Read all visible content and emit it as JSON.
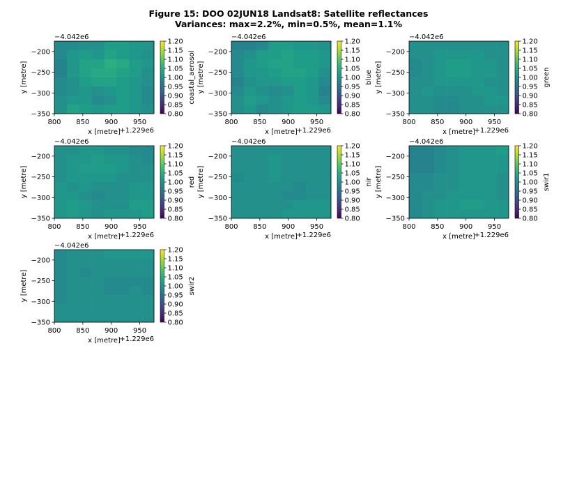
{
  "figure": {
    "title_line1": "Figure 15: DOO 02JUN18  Landsat8: Satellite reflectances",
    "title_line2": "Variances: max=2.2%, min=0.5%, mean=1.1%"
  },
  "colormap": {
    "name": "viridis",
    "stops": [
      "#440154",
      "#482878",
      "#3e4989",
      "#31688e",
      "#26828e",
      "#1f9e89",
      "#35b779",
      "#6ece58",
      "#b5de2b",
      "#fde725"
    ]
  },
  "chart_data": [
    {
      "type": "heatmap",
      "band": "coastal_aerosol",
      "xlabel": "x [metre]",
      "ylabel": "y [metre]",
      "x_offset_label": "+1.229e6",
      "y_offset_label": "−4.042e6",
      "xlim": [
        800,
        975
      ],
      "ylim": [
        -350,
        -175
      ],
      "x_ticks": [
        "800",
        "850",
        "900",
        "950"
      ],
      "y_ticks": [
        "−200",
        "−250",
        "−300",
        "−350"
      ],
      "colorbar": {
        "label": "coastal_aerosol",
        "range": [
          0.8,
          1.2
        ],
        "ticks": [
          "1.20",
          "1.15",
          "1.10",
          "1.05",
          "1.00",
          "0.95",
          "0.90",
          "0.85",
          "0.80"
        ]
      },
      "grid": [
        [
          0.99,
          0.99,
          1.0,
          1.0,
          1.02,
          1.02,
          1.01,
          1.01
        ],
        [
          0.99,
          1.01,
          1.02,
          1.01,
          1.03,
          1.02,
          1.01,
          1.0
        ],
        [
          0.98,
          1.01,
          1.03,
          1.03,
          1.05,
          1.04,
          1.02,
          1.01
        ],
        [
          0.98,
          1.01,
          1.03,
          1.04,
          1.04,
          1.03,
          1.02,
          1.0
        ],
        [
          0.99,
          1.0,
          1.02,
          1.03,
          1.03,
          1.02,
          1.01,
          1.0
        ],
        [
          0.99,
          1.0,
          1.01,
          1.0,
          1.01,
          1.02,
          1.01,
          0.99
        ],
        [
          1.0,
          1.01,
          1.01,
          0.99,
          1.0,
          1.02,
          1.01,
          0.99
        ],
        [
          1.0,
          1.03,
          1.02,
          1.01,
          1.02,
          1.02,
          1.01,
          1.0
        ]
      ]
    },
    {
      "type": "heatmap",
      "band": "blue",
      "xlabel": "x [metre]",
      "ylabel": "y [metre]",
      "x_offset_label": "+1.229e6",
      "y_offset_label": "−4.042e6",
      "xlim": [
        800,
        975
      ],
      "ylim": [
        -350,
        -175
      ],
      "x_ticks": [
        "800",
        "850",
        "900",
        "950"
      ],
      "y_ticks": [
        "−200",
        "−250",
        "−300",
        "−350"
      ],
      "colorbar": {
        "label": "blue",
        "range": [
          0.8,
          1.2
        ],
        "ticks": [
          "1.20",
          "1.15",
          "1.10",
          "1.05",
          "1.00",
          "0.95",
          "0.90",
          "0.85",
          "0.80"
        ]
      },
      "grid": [
        [
          0.98,
          0.98,
          0.99,
          1.02,
          1.02,
          1.01,
          1.01,
          1.0
        ],
        [
          0.99,
          1.0,
          1.02,
          1.02,
          1.03,
          1.02,
          1.02,
          1.01
        ],
        [
          0.99,
          1.01,
          1.02,
          1.03,
          1.03,
          1.02,
          1.02,
          1.01
        ],
        [
          0.99,
          1.01,
          1.01,
          1.02,
          1.03,
          1.03,
          1.02,
          1.0
        ],
        [
          0.98,
          1.0,
          1.01,
          1.01,
          1.02,
          1.02,
          1.01,
          0.99
        ],
        [
          0.99,
          1.01,
          1.0,
          0.99,
          1.0,
          1.02,
          1.01,
          0.98
        ],
        [
          1.0,
          1.02,
          1.01,
          1.0,
          1.01,
          1.02,
          1.01,
          0.99
        ],
        [
          1.0,
          1.01,
          0.99,
          1.0,
          1.01,
          1.02,
          1.02,
          1.01
        ]
      ]
    },
    {
      "type": "heatmap",
      "band": "green",
      "xlabel": "x [metre]",
      "ylabel": "y [metre]",
      "x_offset_label": "+1.229e6",
      "y_offset_label": "−4.042e6",
      "xlim": [
        800,
        975
      ],
      "ylim": [
        -350,
        -175
      ],
      "x_ticks": [
        "800",
        "850",
        "900",
        "950"
      ],
      "y_ticks": [
        "−200",
        "−250",
        "−300",
        "−350"
      ],
      "colorbar": {
        "label": "green",
        "range": [
          0.8,
          1.2
        ],
        "ticks": [
          "1.20",
          "1.15",
          "1.10",
          "1.05",
          "1.00",
          "0.95",
          "0.90",
          "0.85",
          "0.80"
        ]
      },
      "grid": [
        [
          1.0,
          1.0,
          1.0,
          1.0,
          1.0,
          1.0,
          1.0,
          1.0
        ],
        [
          1.0,
          1.0,
          1.01,
          1.01,
          1.01,
          1.01,
          1.0,
          1.0
        ],
        [
          0.99,
          1.0,
          1.01,
          1.02,
          1.02,
          1.01,
          1.01,
          1.0
        ],
        [
          0.99,
          1.0,
          1.01,
          1.02,
          1.02,
          1.01,
          1.01,
          1.0
        ],
        [
          1.0,
          1.0,
          1.01,
          1.01,
          1.01,
          1.01,
          1.0,
          1.0
        ],
        [
          1.0,
          1.01,
          1.0,
          1.0,
          1.0,
          1.01,
          1.01,
          1.0
        ],
        [
          1.0,
          1.0,
          0.99,
          0.99,
          1.0,
          1.0,
          1.01,
          1.01
        ],
        [
          1.0,
          1.0,
          0.99,
          0.99,
          1.0,
          1.0,
          1.0,
          1.0
        ]
      ]
    },
    {
      "type": "heatmap",
      "band": "red",
      "xlabel": "x [metre]",
      "ylabel": "y [metre]",
      "x_offset_label": "+1.229e6",
      "y_offset_label": "−4.042e6",
      "xlim": [
        800,
        975
      ],
      "ylim": [
        -350,
        -175
      ],
      "x_ticks": [
        "800",
        "850",
        "900",
        "950"
      ],
      "y_ticks": [
        "−200",
        "−250",
        "−300",
        "−350"
      ],
      "colorbar": {
        "label": "red",
        "range": [
          0.8,
          1.2
        ],
        "ticks": [
          "1.20",
          "1.15",
          "1.10",
          "1.05",
          "1.00",
          "0.95",
          "0.90",
          "0.85",
          "0.80"
        ]
      },
      "grid": [
        [
          1.0,
          1.0,
          1.01,
          1.01,
          1.0,
          1.0,
          0.99,
          0.99
        ],
        [
          1.0,
          1.01,
          1.01,
          1.02,
          1.01,
          1.01,
          1.0,
          0.99
        ],
        [
          1.0,
          1.01,
          1.02,
          1.02,
          1.02,
          1.01,
          1.0,
          1.0
        ],
        [
          1.0,
          1.01,
          1.01,
          1.01,
          1.01,
          1.0,
          1.0,
          1.0
        ],
        [
          1.01,
          1.0,
          1.01,
          1.0,
          1.0,
          1.0,
          1.01,
          1.01
        ],
        [
          1.01,
          1.01,
          1.0,
          0.99,
          1.0,
          1.0,
          1.01,
          1.01
        ],
        [
          1.01,
          1.02,
          1.01,
          1.0,
          1.0,
          1.0,
          1.02,
          1.02
        ],
        [
          1.01,
          1.02,
          1.01,
          1.0,
          1.01,
          1.01,
          1.01,
          1.02
        ]
      ]
    },
    {
      "type": "heatmap",
      "band": "nir",
      "xlabel": "x [metre]",
      "ylabel": "y [metre]",
      "x_offset_label": "+1.229e6",
      "y_offset_label": "−4.042e6",
      "xlim": [
        800,
        975
      ],
      "ylim": [
        -350,
        -175
      ],
      "x_ticks": [
        "800",
        "850",
        "900",
        "950"
      ],
      "y_ticks": [
        "−200",
        "−250",
        "−300",
        "−350"
      ],
      "colorbar": {
        "label": "nir",
        "range": [
          0.8,
          1.2
        ],
        "ticks": [
          "1.20",
          "1.15",
          "1.10",
          "1.05",
          "1.00",
          "0.95",
          "0.90",
          "0.85",
          "0.80"
        ]
      },
      "grid": [
        [
          1.0,
          1.0,
          1.0,
          1.0,
          1.0,
          1.0,
          1.0,
          1.0
        ],
        [
          1.0,
          1.0,
          1.0,
          1.01,
          1.0,
          1.0,
          1.0,
          1.0
        ],
        [
          1.0,
          1.0,
          1.0,
          1.01,
          1.0,
          1.0,
          1.0,
          1.0
        ],
        [
          0.99,
          1.0,
          1.0,
          1.01,
          1.0,
          1.0,
          1.0,
          1.0
        ],
        [
          1.0,
          1.0,
          1.0,
          1.0,
          1.0,
          0.99,
          1.0,
          1.0
        ],
        [
          1.0,
          1.0,
          1.0,
          1.0,
          0.99,
          0.99,
          1.0,
          1.0
        ],
        [
          1.0,
          1.0,
          1.0,
          1.0,
          1.0,
          1.01,
          1.01,
          1.01
        ],
        [
          1.0,
          1.0,
          1.0,
          1.0,
          1.01,
          1.01,
          1.01,
          1.01
        ]
      ]
    },
    {
      "type": "heatmap",
      "band": "swir1",
      "xlabel": "x [metre]",
      "ylabel": "y [metre]",
      "x_offset_label": "+1.229e6",
      "y_offset_label": "−4.042e6",
      "xlim": [
        800,
        975
      ],
      "ylim": [
        -350,
        -175
      ],
      "x_ticks": [
        "800",
        "850",
        "900",
        "950"
      ],
      "y_ticks": [
        "−200",
        "−250",
        "−300",
        "−350"
      ],
      "colorbar": {
        "label": "swir1",
        "range": [
          0.8,
          1.2
        ],
        "ticks": [
          "1.20",
          "1.15",
          "1.10",
          "1.05",
          "1.00",
          "0.95",
          "0.90",
          "0.85",
          "0.80"
        ]
      },
      "grid": [
        [
          0.98,
          0.98,
          0.99,
          1.0,
          1.01,
          1.01,
          1.01,
          1.02
        ],
        [
          0.98,
          0.98,
          0.99,
          1.0,
          1.01,
          1.01,
          1.01,
          1.01
        ],
        [
          0.98,
          0.98,
          0.99,
          1.0,
          1.01,
          1.01,
          1.01,
          1.01
        ],
        [
          0.99,
          0.99,
          1.0,
          1.0,
          1.01,
          1.01,
          1.01,
          1.0
        ],
        [
          0.99,
          0.99,
          1.0,
          1.0,
          1.01,
          1.01,
          1.01,
          1.0
        ],
        [
          0.99,
          1.0,
          1.0,
          1.01,
          1.01,
          1.01,
          1.01,
          1.0
        ],
        [
          0.99,
          1.0,
          1.01,
          1.01,
          1.02,
          1.02,
          1.01,
          1.01
        ],
        [
          0.99,
          1.0,
          1.01,
          1.01,
          1.01,
          1.01,
          1.01,
          1.01
        ]
      ]
    },
    {
      "type": "heatmap",
      "band": "swir2",
      "xlabel": "x [metre]",
      "ylabel": "y [metre]",
      "x_offset_label": "+1.229e6",
      "y_offset_label": "−4.042e6",
      "xlim": [
        800,
        975
      ],
      "ylim": [
        -350,
        -175
      ],
      "x_ticks": [
        "800",
        "850",
        "900",
        "950"
      ],
      "y_ticks": [
        "−200",
        "−250",
        "−300",
        "−350"
      ],
      "colorbar": {
        "label": "swir2",
        "range": [
          0.8,
          1.2
        ],
        "ticks": [
          "1.20",
          "1.15",
          "1.10",
          "1.05",
          "1.00",
          "0.95",
          "0.90",
          "0.85",
          "0.80"
        ]
      },
      "grid": [
        [
          0.99,
          1.0,
          1.0,
          1.0,
          1.01,
          1.01,
          1.01,
          1.01
        ],
        [
          0.99,
          1.0,
          1.0,
          1.0,
          1.0,
          1.0,
          1.0,
          1.0
        ],
        [
          0.99,
          1.0,
          0.99,
          1.0,
          1.0,
          1.0,
          1.0,
          1.0
        ],
        [
          0.99,
          1.0,
          1.0,
          1.0,
          0.99,
          0.99,
          0.99,
          0.99
        ],
        [
          0.99,
          1.0,
          1.0,
          1.0,
          0.99,
          0.99,
          1.0,
          0.99
        ],
        [
          0.99,
          1.0,
          1.0,
          1.0,
          1.0,
          1.0,
          1.0,
          1.0
        ],
        [
          1.0,
          1.0,
          1.0,
          1.0,
          1.0,
          1.0,
          1.0,
          1.0
        ],
        [
          1.0,
          1.0,
          1.0,
          1.0,
          1.0,
          1.0,
          1.0,
          1.0
        ]
      ]
    }
  ]
}
